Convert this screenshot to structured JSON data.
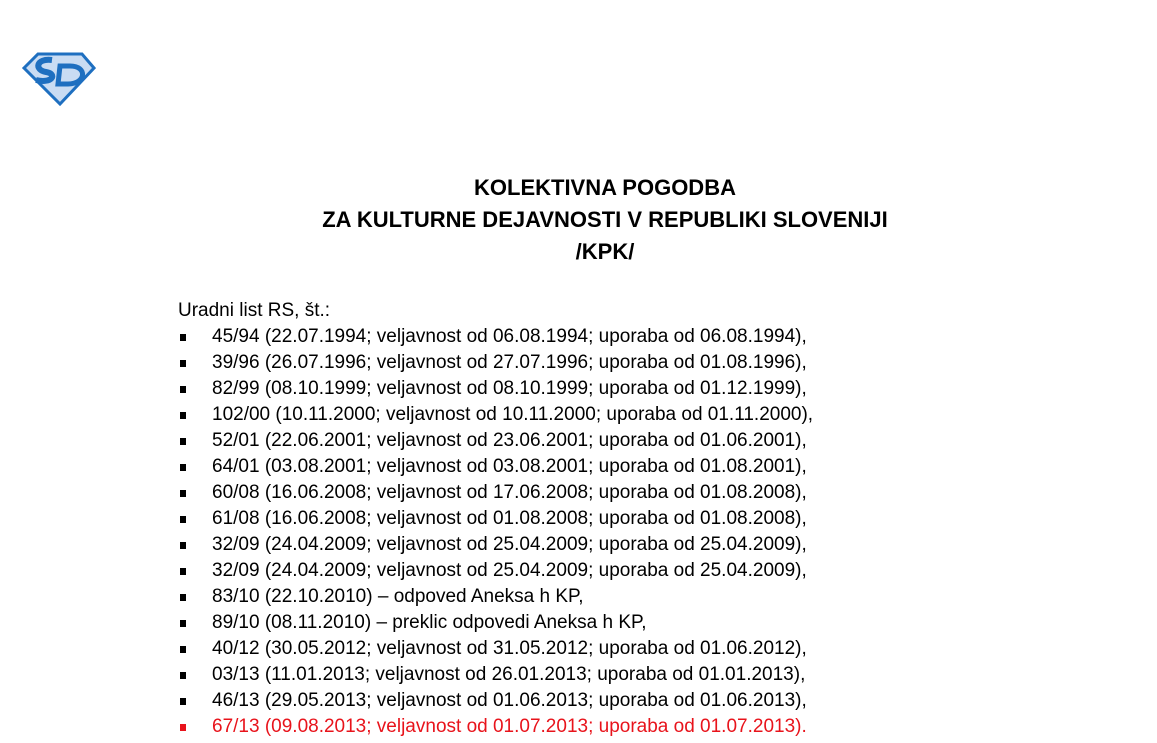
{
  "logo": {
    "text": "SD",
    "color": "#1e6fc0",
    "fill": "#c9dcf3"
  },
  "title": {
    "line1": "KOLEKTIVNA POGODBA",
    "line2": "ZA KULTURNE DEJAVNOSTI V REPUBLIKI SLOVENIJI",
    "line3": "/KPK/"
  },
  "intro": "Uradni list RS, št.:",
  "highlight_color": "#e8131b",
  "items": [
    {
      "text": "45/94 (22.07.1994; veljavnost od 06.08.1994; uporaba od 06.08.1994),"
    },
    {
      "text": "39/96 (26.07.1996; veljavnost od 27.07.1996; uporaba od 01.08.1996),"
    },
    {
      "text": "82/99 (08.10.1999; veljavnost od 08.10.1999; uporaba od 01.12.1999),"
    },
    {
      "text": "102/00 (10.11.2000; veljavnost od 10.11.2000; uporaba od 01.11.2000),"
    },
    {
      "text": "52/01 (22.06.2001; veljavnost od 23.06.2001; uporaba od 01.06.2001),"
    },
    {
      "text": "64/01 (03.08.2001; veljavnost od 03.08.2001; uporaba od 01.08.2001),"
    },
    {
      "text": "60/08 (16.06.2008; veljavnost od 17.06.2008; uporaba od 01.08.2008),"
    },
    {
      "text": "61/08 (16.06.2008; veljavnost od 01.08.2008; uporaba od 01.08.2008),"
    },
    {
      "text": "32/09 (24.04.2009; veljavnost od 25.04.2009; uporaba od 25.04.2009),"
    },
    {
      "text": "32/09 (24.04.2009; veljavnost od 25.04.2009; uporaba od 25.04.2009),"
    },
    {
      "text": "83/10 (22.10.2010) – odpoved Aneksa h KP,"
    },
    {
      "text": "89/10 (08.11.2010) – preklic odpovedi Aneksa h KP,"
    },
    {
      "text": "40/12 (30.05.2012; veljavnost od 31.05.2012; uporaba od 01.06.2012),"
    },
    {
      "text": "03/13 (11.01.2013; veljavnost od 26.01.2013; uporaba od 01.01.2013),"
    },
    {
      "text": "46/13 (29.05.2013; veljavnost od 01.06.2013; uporaba od 01.06.2013),"
    },
    {
      "text": "67/13 (09.08.2013; veljavnost od 01.07.2013; uporaba od 01.07.2013).",
      "highlighted": true
    }
  ]
}
